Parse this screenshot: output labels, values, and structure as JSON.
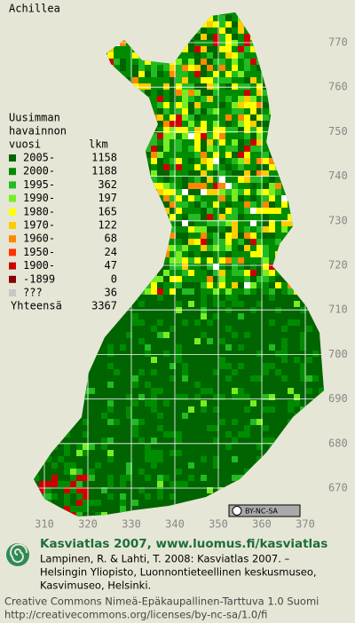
{
  "map": {
    "title": "Achillea",
    "legend": {
      "header": [
        "Uusimman",
        "havainnon",
        "vuosi"
      ],
      "count_header": "lkm",
      "items": [
        {
          "label": "2005-",
          "count": 1158,
          "color": "#006400"
        },
        {
          "label": "2000-",
          "count": 1188,
          "color": "#008c00"
        },
        {
          "label": "1995-",
          "count": 362,
          "color": "#22bb22"
        },
        {
          "label": "1990-",
          "count": 197,
          "color": "#77ee22"
        },
        {
          "label": "1980-",
          "count": 165,
          "color": "#ffff00"
        },
        {
          "label": "1970-",
          "count": 122,
          "color": "#ffcc00"
        },
        {
          "label": "1960-",
          "count": 68,
          "color": "#ff8800"
        },
        {
          "label": "1950-",
          "count": 24,
          "color": "#ff3300"
        },
        {
          "label": "1900-",
          "count": 47,
          "color": "#cc0000"
        },
        {
          "label": "-1899",
          "count": 0,
          "color": "#880000"
        },
        {
          "label": "???",
          "count": 36,
          "color": "#c8c8c8"
        }
      ],
      "total_label": "Yhteensä",
      "total": 3367
    },
    "grid_labels_right": [
      770,
      760,
      750,
      740,
      730,
      720,
      710,
      700,
      690,
      680,
      670
    ],
    "grid_labels_bottom": [
      310,
      320,
      330,
      340,
      350,
      360,
      370
    ],
    "license_badge": "BY-NC-SA",
    "footer": {
      "heading": "Kasviatlas 2007, www.luomus.fi/kasviatlas",
      "citation": [
        "Lampinen, R. & Lahti, T. 2008: Kasviatlas 2007. –",
        "Helsingin Yliopisto, Luonnontieteellinen keskusmuseo,",
        "Kasvimuseo, Helsinki."
      ],
      "license": [
        "Creative Commons Nimeä-Epäkaupallinen-Tarttuva 1.0 Suomi",
        "http://creativecommons.org/licenses/by-nc-sa/1.0/fi"
      ]
    }
  }
}
